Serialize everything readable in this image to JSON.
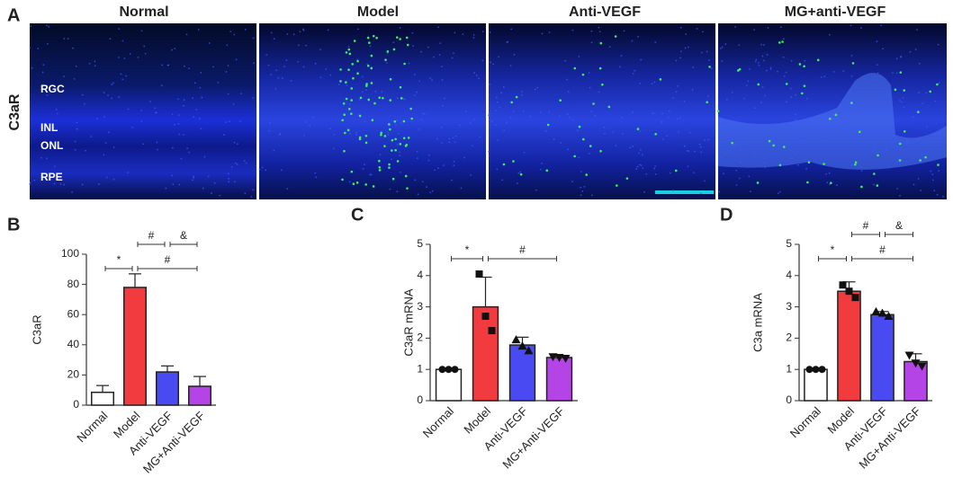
{
  "panel_a": {
    "panel_label": "A",
    "row_label": "C3aR",
    "columns": [
      "Normal",
      "Model",
      "Anti-VEGF",
      "MG+anti-VEGF"
    ],
    "layers": [
      "RGC",
      "INL",
      "ONL",
      "RPE"
    ]
  },
  "chart_data": [
    {
      "type": "bar",
      "panel_label": "B",
      "ylabel": "C3aR",
      "categories": [
        "Normal",
        "Model",
        "Anti-VEGF",
        "MG+Anti-VEGF"
      ],
      "values": [
        8.5,
        78,
        22,
        12.5
      ],
      "errors": [
        4.5,
        9,
        4,
        6.5
      ],
      "colors": [
        "#ffffff",
        "#f23b3e",
        "#4a4af2",
        "#b444e6"
      ],
      "ylim": [
        0,
        100
      ],
      "yticks": [
        0,
        20,
        40,
        60,
        80,
        100
      ],
      "comparisons": [
        {
          "between": [
            0,
            1
          ],
          "label": "*"
        },
        {
          "between": [
            1,
            3
          ],
          "label": "#"
        },
        {
          "between": [
            1,
            2
          ],
          "label": "#"
        },
        {
          "between": [
            2,
            3
          ],
          "label": "&"
        }
      ]
    },
    {
      "type": "bar",
      "panel_label": "C",
      "ylabel": "C3aR mRNA",
      "categories": [
        "Normal",
        "Model",
        "Anti-VEGF",
        "MG+Anti-VEGF"
      ],
      "values": [
        1.0,
        3.0,
        1.78,
        1.38
      ],
      "errors": [
        0.02,
        0.95,
        0.25,
        0.05
      ],
      "points": [
        [
          1,
          1,
          1
        ],
        [
          4.05,
          2.7,
          2.24
        ],
        [
          1.95,
          1.75,
          1.6
        ],
        [
          1.4,
          1.38,
          1.35
        ]
      ],
      "markers": [
        "circle",
        "square",
        "triangle",
        "triangle-down"
      ],
      "colors": [
        "#ffffff",
        "#f23b3e",
        "#4a4af2",
        "#b444e6"
      ],
      "ylim": [
        0,
        5
      ],
      "yticks": [
        0,
        1,
        2,
        3,
        4,
        5
      ],
      "comparisons": [
        {
          "between": [
            0,
            1
          ],
          "label": "*"
        },
        {
          "between": [
            1,
            3
          ],
          "label": "#"
        }
      ]
    },
    {
      "type": "bar",
      "panel_label": "D",
      "ylabel": "C3a mRNA",
      "categories": [
        "Normal",
        "Model",
        "Anti-VEGF",
        "MG+Anti-VEGF"
      ],
      "values": [
        1.0,
        3.5,
        2.75,
        1.25
      ],
      "errors": [
        0.02,
        0.3,
        0.1,
        0.25
      ],
      "points": [
        [
          1,
          1,
          1
        ],
        [
          3.7,
          3.5,
          3.3
        ],
        [
          2.85,
          2.8,
          2.7
        ],
        [
          1.45,
          1.2,
          1.1
        ]
      ],
      "markers": [
        "circle",
        "square",
        "triangle",
        "triangle-down"
      ],
      "colors": [
        "#ffffff",
        "#f23b3e",
        "#4a4af2",
        "#b444e6"
      ],
      "ylim": [
        0,
        5
      ],
      "yticks": [
        0,
        1,
        2,
        3,
        4,
        5
      ],
      "comparisons": [
        {
          "between": [
            0,
            1
          ],
          "label": "*"
        },
        {
          "between": [
            1,
            3
          ],
          "label": "#"
        },
        {
          "between": [
            1,
            2
          ],
          "label": "#"
        },
        {
          "between": [
            2,
            3
          ],
          "label": "&"
        }
      ]
    }
  ]
}
